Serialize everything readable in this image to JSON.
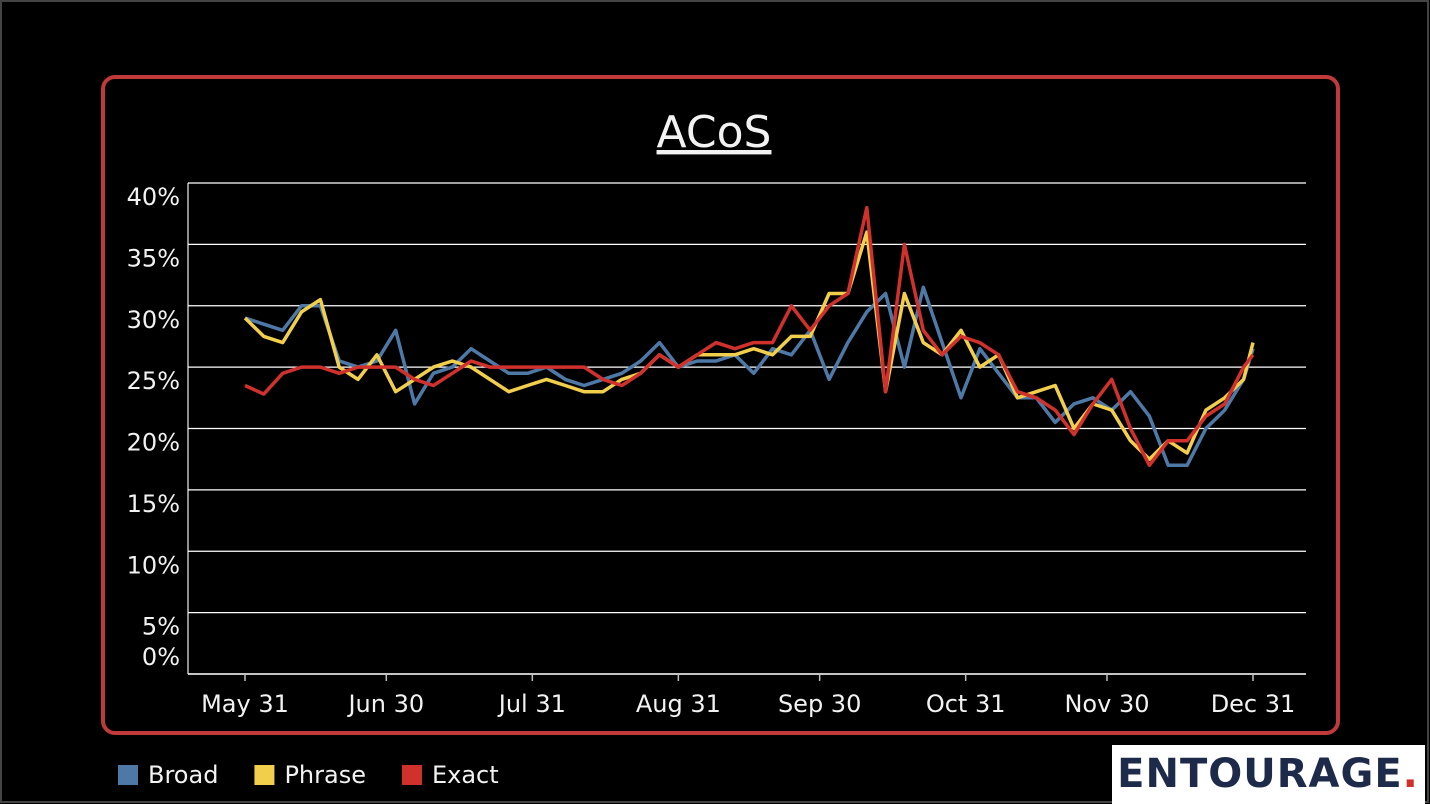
{
  "chart_data": {
    "type": "line",
    "title": "ACoS",
    "x": [
      0,
      4,
      8,
      12,
      16,
      20,
      24,
      28,
      32,
      36,
      40,
      44,
      48,
      52,
      56,
      60,
      64,
      68,
      72,
      76,
      80,
      84,
      88,
      92,
      96,
      100,
      104,
      108,
      112,
      116,
      120,
      124,
      128,
      132,
      136,
      140,
      144,
      148,
      152,
      156,
      160,
      164,
      168,
      172,
      176,
      180,
      184,
      188,
      192,
      196,
      200,
      204,
      208,
      212,
      214
    ],
    "xlim": [
      -12,
      225
    ],
    "xticks": [
      {
        "value": 0,
        "label": "May 31"
      },
      {
        "value": 30,
        "label": "Jun 30"
      },
      {
        "value": 61,
        "label": "Jul 31"
      },
      {
        "value": 92,
        "label": "Aug 31"
      },
      {
        "value": 122,
        "label": "Sep 30"
      },
      {
        "value": 153,
        "label": "Oct 31"
      },
      {
        "value": 183,
        "label": "Nov 30"
      },
      {
        "value": 214,
        "label": "Dec 31"
      }
    ],
    "ylim": [
      0,
      40
    ],
    "yticks": [
      {
        "value": 0,
        "label": "0%"
      },
      {
        "value": 5,
        "label": "5%"
      },
      {
        "value": 10,
        "label": "10%"
      },
      {
        "value": 15,
        "label": "15%"
      },
      {
        "value": 20,
        "label": "20%"
      },
      {
        "value": 25,
        "label": "25%"
      },
      {
        "value": 30,
        "label": "30%"
      },
      {
        "value": 35,
        "label": "35%"
      },
      {
        "value": 40,
        "label": "40%"
      }
    ],
    "grid": true,
    "legend": "bottom-left",
    "series": [
      {
        "name": "Broad",
        "color": "#4e79a7",
        "values": [
          29,
          28.5,
          28,
          30,
          30,
          25.5,
          25,
          25.5,
          28,
          22,
          24.5,
          25,
          26.5,
          25.5,
          24.5,
          24.5,
          25,
          24,
          23.5,
          24,
          24.5,
          25.5,
          27,
          25,
          25.5,
          25.5,
          26,
          24.5,
          26.5,
          26,
          28,
          24,
          27,
          29.5,
          31,
          25,
          31.5,
          27,
          22.5,
          26.5,
          24.5,
          22.5,
          22.5,
          20.5,
          22,
          22.5,
          21.5,
          23,
          21,
          17,
          17,
          20,
          21.5,
          24,
          26.5
        ]
      },
      {
        "name": "Phrase",
        "color": "#f1ce4b",
        "values": [
          29,
          27.5,
          27,
          29.5,
          30.5,
          25,
          24,
          26,
          23,
          24,
          25,
          25.5,
          25,
          24,
          23,
          23.5,
          24,
          23.5,
          23,
          23,
          24,
          24.5,
          26,
          25,
          26,
          26,
          26,
          26.5,
          26,
          27.5,
          27.5,
          31,
          31,
          36,
          23,
          31,
          27,
          26,
          28,
          25,
          26,
          22.5,
          23,
          23.5,
          20,
          22,
          21.5,
          19,
          17.5,
          19,
          18,
          21.5,
          22.5,
          24,
          27
        ]
      },
      {
        "name": "Exact",
        "color": "#d0312d",
        "values": [
          23.5,
          22.8,
          24.5,
          25,
          25,
          24.5,
          25,
          25,
          25,
          24,
          23.5,
          24.5,
          25.5,
          25,
          25,
          25,
          25,
          25,
          25,
          24,
          23.5,
          24.5,
          26,
          25,
          26,
          27,
          26.5,
          27,
          27,
          30,
          28,
          30,
          31,
          38,
          23,
          35,
          28,
          26,
          27.5,
          27,
          26,
          23,
          22.5,
          21.5,
          19.5,
          22,
          24,
          20,
          17,
          19,
          19,
          21,
          22,
          25,
          26
        ]
      }
    ]
  },
  "logo": "ENTOURAGE",
  "logo_dot": "."
}
